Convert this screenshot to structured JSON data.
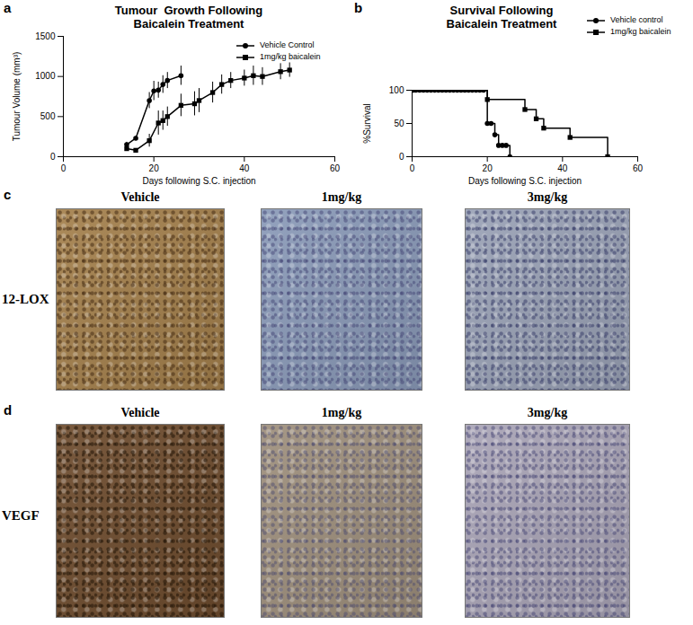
{
  "chart_data": [
    {
      "panel_label": "a",
      "type": "line",
      "title": "Tumour  Growth Following Baicalein Treatment",
      "x_label": "Days following S.C. injection",
      "y_label": "Tumour Volume (mm³)",
      "xlim": [
        0,
        60
      ],
      "xticks": [
        0,
        20,
        40,
        60
      ],
      "ylim": [
        0,
        1500
      ],
      "yticks": [
        0,
        500,
        1000,
        1500
      ],
      "legend": "top-right",
      "series": [
        {
          "name": "Vehicle Control",
          "color": "#000000",
          "marker": "circle",
          "x": [
            14,
            16,
            19,
            20,
            21,
            22,
            23,
            26
          ],
          "values": [
            150,
            230,
            700,
            820,
            830,
            900,
            950,
            1010
          ],
          "errors": [
            30,
            20,
            100,
            120,
            100,
            110,
            100,
            120
          ]
        },
        {
          "name": "1mg/kg baicalein",
          "color": "#000000",
          "marker": "square",
          "x": [
            14,
            16,
            19,
            21,
            22,
            23,
            26,
            29,
            30,
            33,
            35,
            37,
            40,
            42,
            44,
            48,
            50
          ],
          "values": [
            100,
            80,
            200,
            420,
            450,
            500,
            640,
            660,
            700,
            800,
            900,
            950,
            980,
            1010,
            1000,
            1060,
            1080
          ],
          "errors": [
            30,
            20,
            80,
            150,
            120,
            120,
            140,
            150,
            150,
            130,
            120,
            100,
            100,
            120,
            110,
            100,
            90
          ]
        }
      ]
    },
    {
      "panel_label": "b",
      "type": "line",
      "title": "Survival Following Baicalein Treatment",
      "x_label": "Days following S.C. injection",
      "y_label": "%Survival",
      "xlim": [
        0,
        60
      ],
      "xticks": [
        0,
        20,
        40,
        60
      ],
      "ylim": [
        0,
        100
      ],
      "yticks": [
        0,
        50,
        100
      ],
      "legend": "top-right",
      "line_style": "step",
      "series": [
        {
          "name": "Vehicle control",
          "color": "#000000",
          "marker": "circle",
          "x": [
            0,
            1,
            2,
            3,
            4,
            5,
            6,
            7,
            8,
            9,
            10,
            11,
            12,
            13,
            14,
            15,
            16,
            17,
            18,
            19,
            20,
            21,
            22,
            23,
            24,
            25,
            26
          ],
          "values": [
            100,
            100,
            100,
            100,
            100,
            100,
            100,
            100,
            100,
            100,
            100,
            100,
            100,
            100,
            100,
            100,
            100,
            100,
            100,
            100,
            50,
            50,
            33,
            17,
            17,
            17,
            0
          ]
        },
        {
          "name": "1mg/kg baicalein",
          "color": "#000000",
          "marker": "square",
          "x": [
            0,
            20,
            30,
            33,
            35,
            42,
            52
          ],
          "values": [
            100,
            86,
            71,
            57,
            43,
            29,
            0
          ]
        }
      ]
    }
  ],
  "micrographs": [
    {
      "panel_label": "c",
      "row_label": "12-LOX",
      "columns": [
        "Vehicle",
        "1mg/kg",
        "3mg/kg"
      ]
    },
    {
      "panel_label": "d",
      "row_label": "VEGF",
      "columns": [
        "Vehicle",
        "1mg/kg",
        "3mg/kg"
      ]
    }
  ]
}
